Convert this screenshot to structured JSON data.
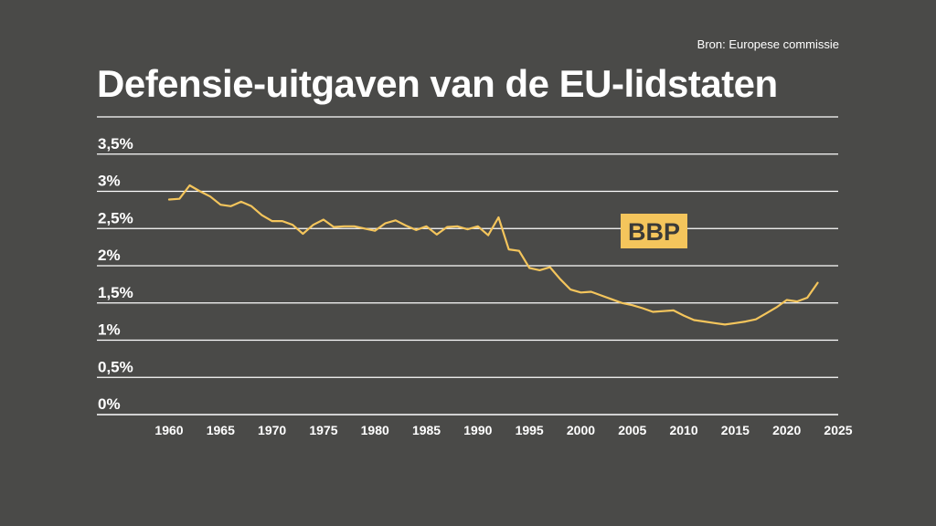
{
  "source": "Bron: Europese commissie",
  "title": "Defensie-uitgaven van de EU-lidstaten",
  "colors": {
    "background": "#4a4a48",
    "line": "#f4c55c",
    "grid": "#ffffff",
    "text": "#ffffff",
    "label_text": "#3a3a38"
  },
  "chart_data": {
    "type": "line",
    "title": "Defensie-uitgaven van de EU-lidstaten",
    "xlabel": "",
    "ylabel": "",
    "xlim": [
      1955,
      2025
    ],
    "ylim": [
      0,
      4
    ],
    "x_ticks": [
      1960,
      1965,
      1970,
      1975,
      1980,
      1985,
      1990,
      1995,
      2000,
      2005,
      2010,
      2015,
      2020,
      2025
    ],
    "y_ticks": [
      0,
      0.5,
      1,
      1.5,
      2,
      2.5,
      3,
      3.5,
      4
    ],
    "y_tick_labels": [
      "0%",
      "0,5%",
      "1%",
      "1,5%",
      "2%",
      "2,5%",
      "3%",
      "3,5%",
      ""
    ],
    "grid": true,
    "annotation": "BBP",
    "series": [
      {
        "name": "BBP",
        "x": [
          1960,
          1961,
          1962,
          1963,
          1964,
          1965,
          1966,
          1967,
          1968,
          1969,
          1970,
          1971,
          1972,
          1973,
          1974,
          1975,
          1976,
          1977,
          1978,
          1979,
          1980,
          1981,
          1982,
          1983,
          1984,
          1985,
          1986,
          1987,
          1988,
          1989,
          1990,
          1991,
          1992,
          1993,
          1994,
          1995,
          1996,
          1997,
          1998,
          1999,
          2000,
          2001,
          2002,
          2003,
          2004,
          2005,
          2006,
          2007,
          2008,
          2009,
          2010,
          2011,
          2012,
          2013,
          2014,
          2015,
          2016,
          2017,
          2018,
          2019,
          2020,
          2021,
          2022,
          2023
        ],
        "values": [
          2.89,
          2.9,
          3.08,
          3.0,
          2.93,
          2.82,
          2.8,
          2.86,
          2.8,
          2.68,
          2.6,
          2.6,
          2.55,
          2.43,
          2.55,
          2.62,
          2.52,
          2.53,
          2.53,
          2.5,
          2.47,
          2.57,
          2.61,
          2.54,
          2.48,
          2.53,
          2.42,
          2.52,
          2.53,
          2.49,
          2.53,
          2.41,
          2.65,
          2.22,
          2.2,
          1.97,
          1.94,
          1.98,
          1.82,
          1.68,
          1.64,
          1.65,
          1.6,
          1.55,
          1.5,
          1.47,
          1.43,
          1.38,
          1.39,
          1.4,
          1.33,
          1.27,
          1.25,
          1.23,
          1.21,
          1.23,
          1.25,
          1.28,
          1.36,
          1.44,
          1.54,
          1.52,
          1.57,
          1.77
        ]
      }
    ]
  }
}
